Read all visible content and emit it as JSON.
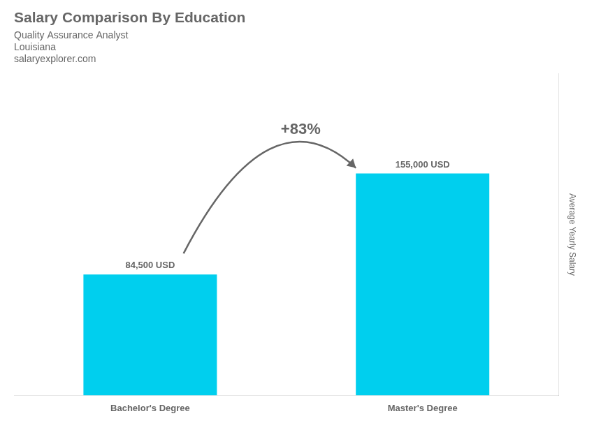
{
  "chart_data": {
    "type": "bar",
    "title": "Salary Comparison By Education",
    "subtitle": "Quality Assurance Analyst",
    "annotations": [
      "Louisiana",
      "salaryexplorer.com",
      "+83%"
    ],
    "ylabel": "Average Yearly Salary",
    "categories": [
      "Bachelor's Degree",
      "Master's Degree"
    ],
    "values": [
      84500,
      155000
    ],
    "value_labels": [
      "84,500 USD",
      "155,000 USD"
    ],
    "data_labels": true,
    "color": "#00CFEE",
    "ylim": [
      0,
      224750
    ],
    "tick_labels": "x",
    "grid": false
  }
}
